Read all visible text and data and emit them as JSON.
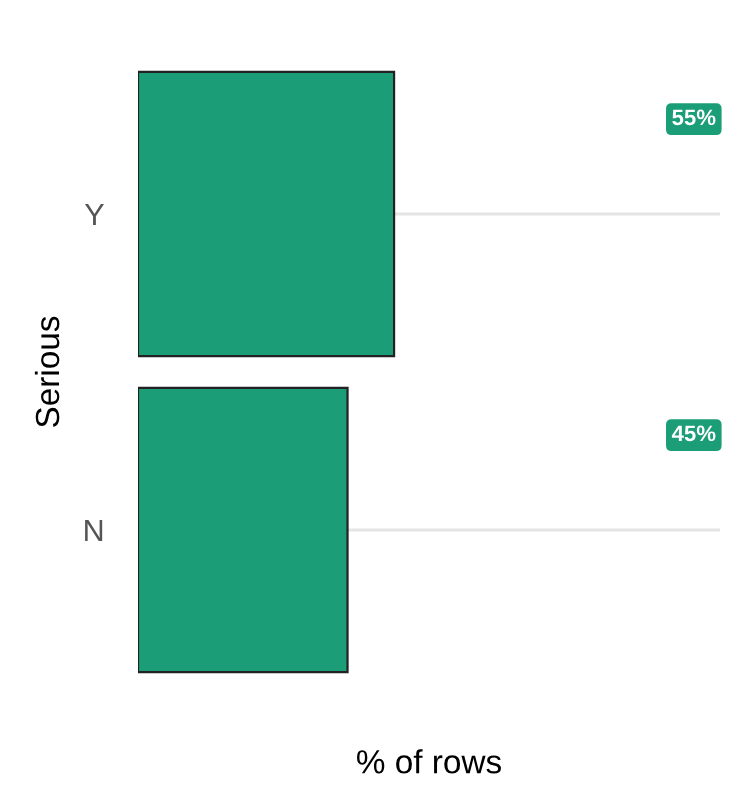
{
  "chart_data": {
    "type": "bar",
    "orientation": "horizontal",
    "categories": [
      "Y",
      "N"
    ],
    "values": [
      55,
      45
    ],
    "color": "#1b9e77",
    "value_labels": [
      "55%",
      "45%"
    ],
    "xlabel": "% of rows",
    "ylabel": "Serious",
    "xlim": [
      0,
      125
    ],
    "grid": "y",
    "tick_labels": "y"
  }
}
